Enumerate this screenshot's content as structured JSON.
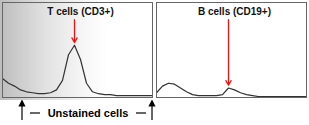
{
  "chart_data": [
    {
      "type": "line",
      "x": [
        0,
        4,
        8,
        12,
        16,
        20,
        24,
        28,
        32,
        36,
        40,
        44,
        48,
        52,
        56,
        60,
        64,
        68,
        72,
        76,
        80,
        84,
        88,
        92,
        96,
        100
      ],
      "values": [
        20,
        15,
        12,
        8,
        6,
        5,
        4,
        4,
        5,
        8,
        18,
        45,
        55,
        40,
        15,
        6,
        4,
        3,
        3,
        2,
        2,
        2,
        2,
        2,
        2,
        2
      ],
      "xlim": [
        0,
        100
      ],
      "ylim": [
        0,
        100
      ],
      "tick_labels": false,
      "color": "#333333",
      "annotations": [
        {
          "text": "T cells (CD3+)",
          "x": 48,
          "color": "#ee1111"
        }
      ]
    },
    {
      "type": "line",
      "x": [
        0,
        4,
        8,
        12,
        16,
        20,
        24,
        28,
        32,
        36,
        40,
        44,
        48,
        52,
        56,
        60,
        64,
        68,
        72,
        76,
        80,
        84,
        88,
        92,
        96,
        100
      ],
      "values": [
        5,
        12,
        15,
        14,
        10,
        6,
        3,
        2,
        2,
        2,
        2,
        3,
        10,
        8,
        5,
        3,
        2,
        1,
        1,
        1,
        1,
        1,
        1,
        1,
        1,
        1
      ],
      "xlim": [
        0,
        100
      ],
      "ylim": [
        0,
        100
      ],
      "tick_labels": false,
      "color": "#333333",
      "annotations": [
        {
          "text": "B cells (CD19+)",
          "x": 48,
          "color": "#ee1111"
        }
      ]
    }
  ],
  "caption": "Unstained cells"
}
